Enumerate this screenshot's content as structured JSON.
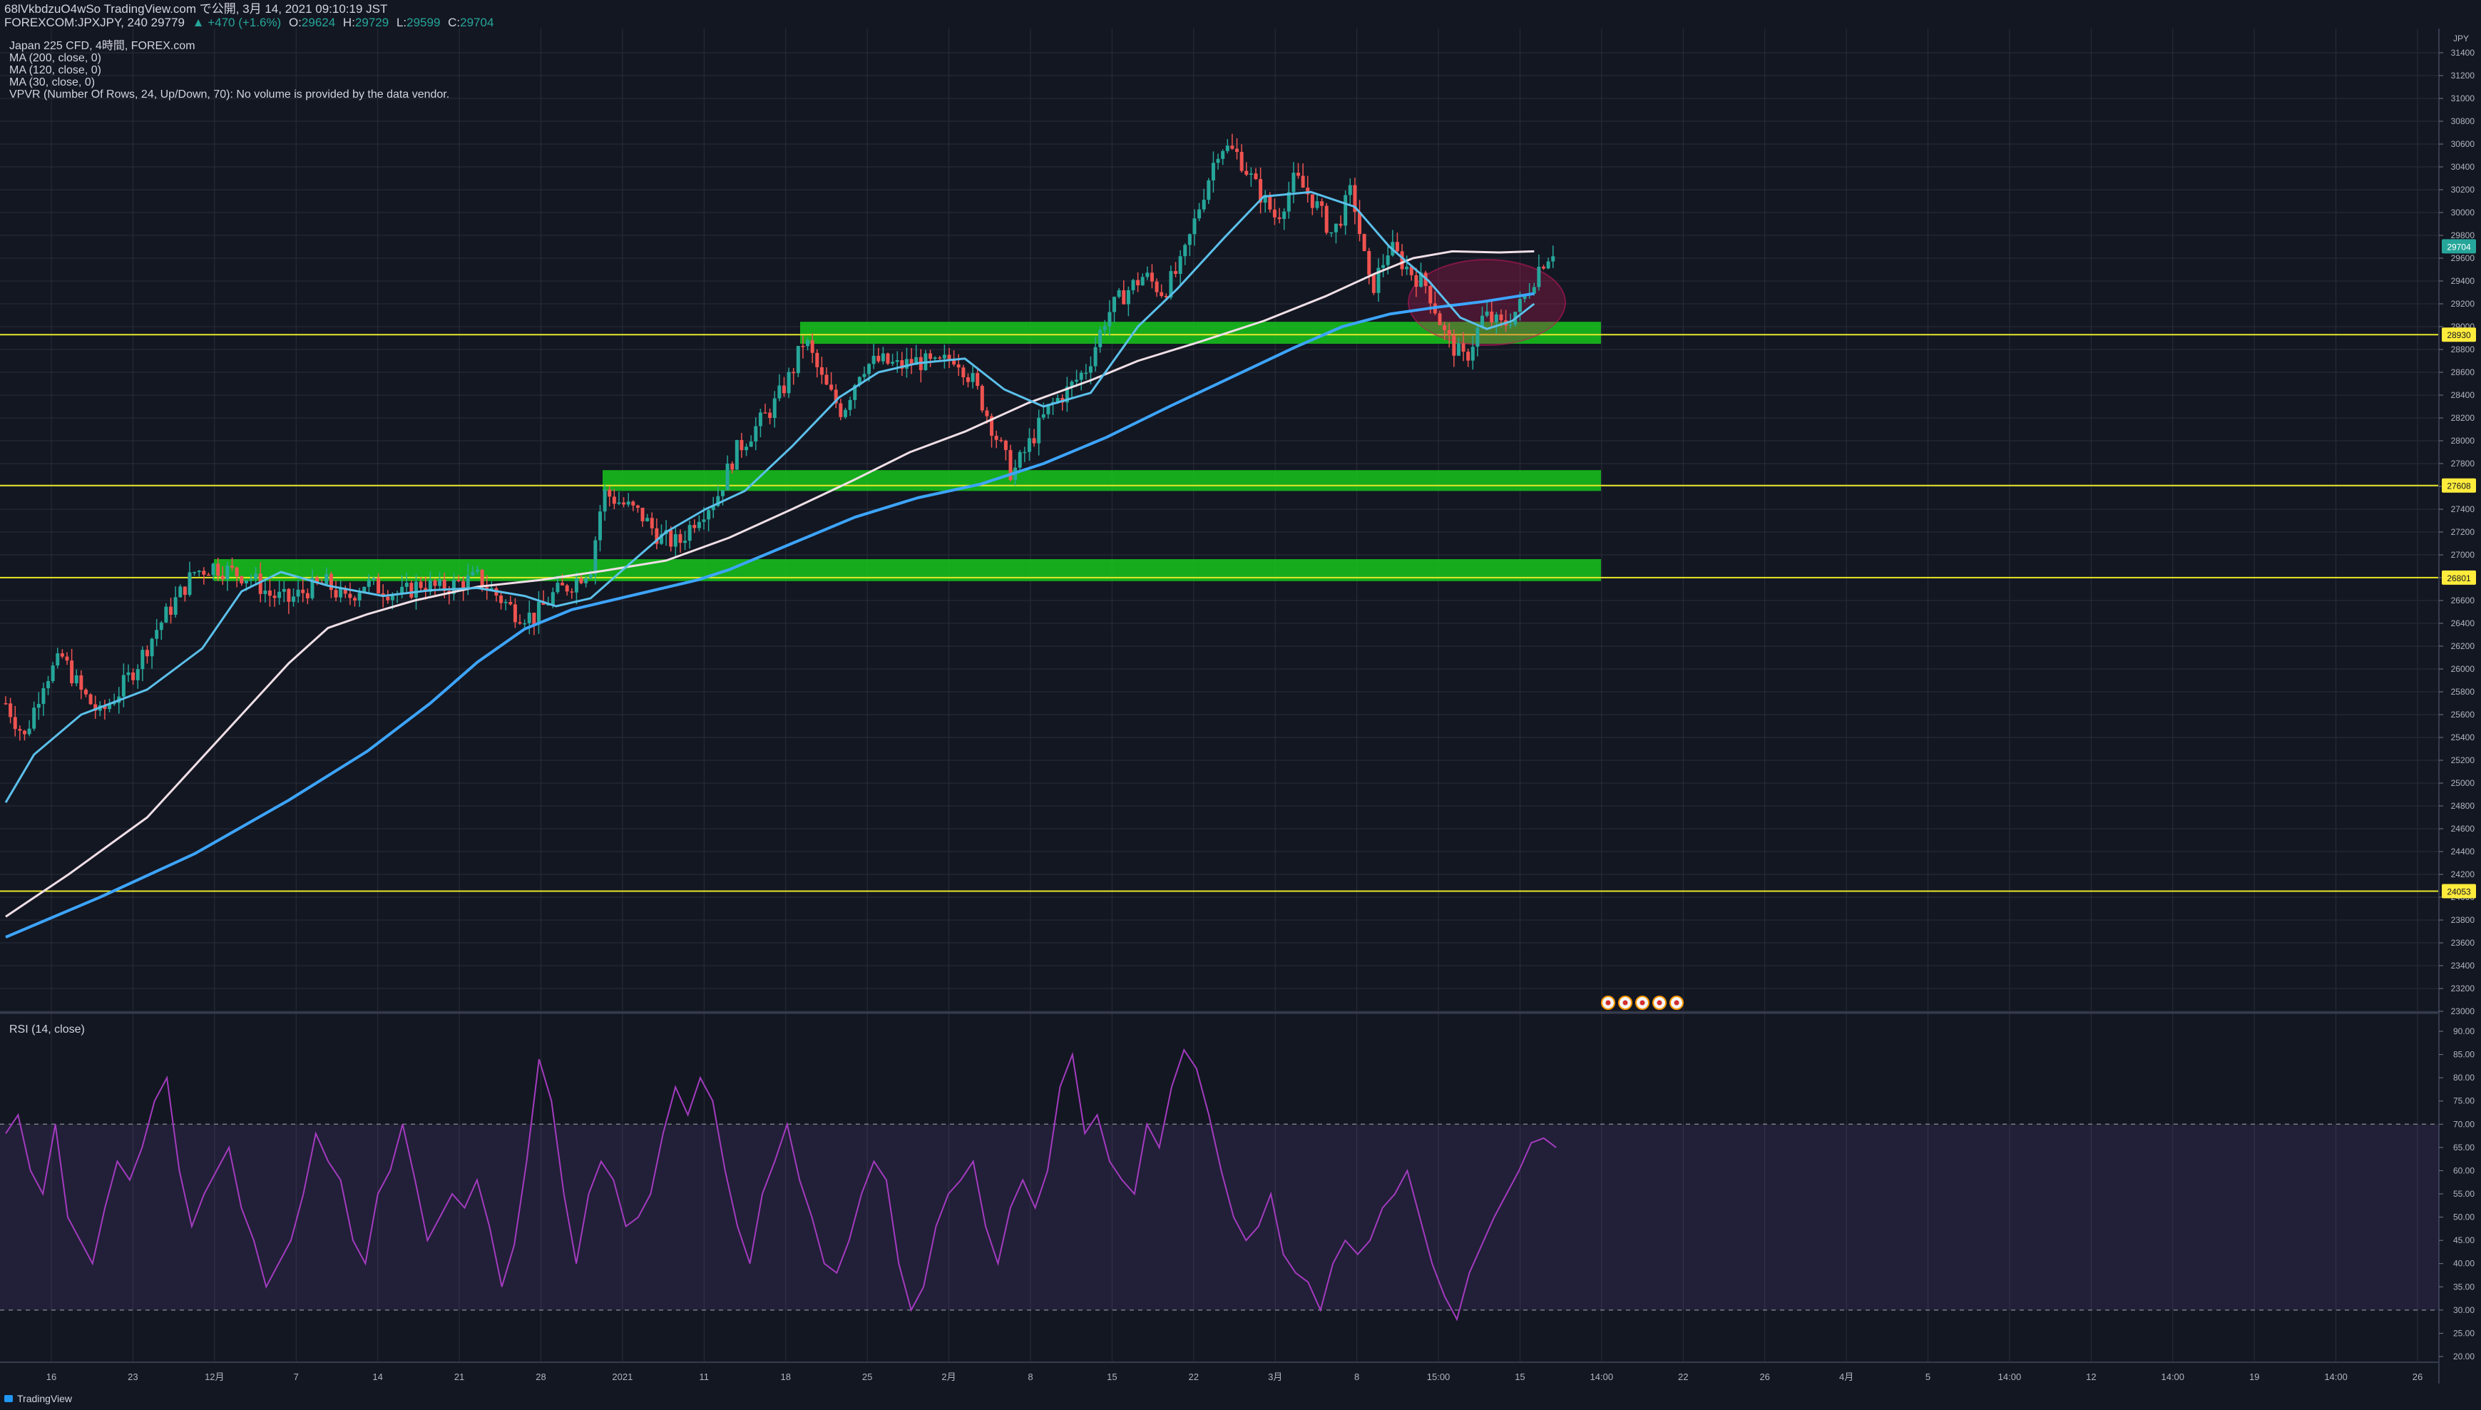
{
  "header": {
    "snapshot_text": "68lVkbdzuO4wSo TradingView.com で公開, 3月 14, 2021 09:10:19 JST",
    "symbol_text": "FOREXCOM:JPXJPY, 240 29779",
    "change_text": "▲ +470 (+1.6%)",
    "o_label": "O:",
    "o_value": "29624",
    "h_label": "H:",
    "h_value": "29729",
    "l_label": "L:",
    "l_value": "29599",
    "c_label": "C:",
    "c_value": "29704"
  },
  "legend": [
    "Japan 225 CFD, 4時間, FOREX.com",
    "MA (200, close, 0)",
    "MA (120, close, 0)",
    "MA (30, close, 0)",
    "VPVR (Number Of Rows, 24, Up/Down, 70): No volume is provided by the data vendor."
  ],
  "rsi_label": "RSI (14, close)",
  "currency_label": "JPY",
  "footer": {
    "brand": "TradingView"
  },
  "colors": {
    "background": "#131722",
    "up": "#26a69a",
    "down": "#ef5350",
    "zone": "#17c51b",
    "hline": "#e8e829",
    "ma30": "#5bc0eb",
    "ma120": "#f0dfe6",
    "ma200": "#3da5ff",
    "rsi": "#a33bbf",
    "rsi_band": "#7e57c2",
    "last_price": "#26a69a"
  },
  "chart_data": {
    "type": "candlestick",
    "symbol": "FOREXCOM:JPXJPY",
    "timeframe": "240",
    "y_axis": {
      "ylim": [
        23000,
        31600
      ],
      "ticks": [
        23000,
        23200,
        23400,
        23600,
        23800,
        24000,
        24200,
        24400,
        24600,
        24800,
        25000,
        25200,
        25400,
        25600,
        25800,
        26000,
        26200,
        26400,
        26600,
        26800,
        27000,
        27200,
        27400,
        27600,
        27800,
        28000,
        28200,
        28400,
        28600,
        28800,
        29000,
        29200,
        29400,
        29600,
        29800,
        30000,
        30200,
        30400,
        30600,
        30800,
        31000,
        31200,
        31400
      ]
    },
    "x_axis": {
      "ticks": [
        "16",
        "23",
        "12月",
        "7",
        "14",
        "21",
        "28",
        "2021",
        "11",
        "18",
        "25",
        "2月",
        "8",
        "15",
        "22",
        "3月",
        "8",
        "15:00",
        "15",
        "14:00",
        "22",
        "26",
        "4月",
        "5",
        "14:00",
        "12",
        "14:00",
        "19",
        "14:00",
        "26"
      ]
    },
    "price_labels": [
      "29704",
      "28930",
      "27608",
      "26801",
      "24053"
    ],
    "horizontal_lines": [
      28930,
      27608,
      26801,
      24053
    ],
    "support_zones": [
      {
        "low": 28850,
        "high": 28980,
        "start": "2021-01-14",
        "end": "2021-03-15"
      },
      {
        "low": 27560,
        "high": 27680,
        "start": "2020-12-28",
        "end": "2021-03-15"
      },
      {
        "low": 26770,
        "high": 26900,
        "start": "2020-11-27",
        "end": "2021-03-15"
      }
    ],
    "ma30_path": [
      [
        0,
        24830
      ],
      [
        18,
        25250
      ],
      [
        48,
        25600
      ],
      [
        90,
        25820
      ],
      [
        125,
        26180
      ],
      [
        150,
        26680
      ],
      [
        175,
        26850
      ],
      [
        205,
        26730
      ],
      [
        240,
        26640
      ],
      [
        270,
        26690
      ],
      [
        300,
        26710
      ],
      [
        330,
        26640
      ],
      [
        350,
        26550
      ],
      [
        372,
        26620
      ],
      [
        395,
        26900
      ],
      [
        420,
        27200
      ],
      [
        445,
        27400
      ],
      [
        470,
        27560
      ],
      [
        500,
        27950
      ],
      [
        530,
        28380
      ],
      [
        555,
        28600
      ],
      [
        580,
        28680
      ],
      [
        610,
        28720
      ],
      [
        635,
        28450
      ],
      [
        660,
        28300
      ],
      [
        690,
        28420
      ],
      [
        720,
        29000
      ],
      [
        745,
        29330
      ],
      [
        775,
        29780
      ],
      [
        800,
        30140
      ],
      [
        830,
        30180
      ],
      [
        858,
        30050
      ],
      [
        880,
        29700
      ],
      [
        905,
        29400
      ],
      [
        925,
        29080
      ],
      [
        942,
        28980
      ],
      [
        958,
        29050
      ],
      [
        972,
        29200
      ]
    ],
    "ma120_path": [
      [
        0,
        23830
      ],
      [
        40,
        24200
      ],
      [
        90,
        24700
      ],
      [
        140,
        25450
      ],
      [
        180,
        26050
      ],
      [
        205,
        26360
      ],
      [
        230,
        26480
      ],
      [
        260,
        26600
      ],
      [
        300,
        26720
      ],
      [
        340,
        26780
      ],
      [
        380,
        26860
      ],
      [
        420,
        26950
      ],
      [
        460,
        27150
      ],
      [
        500,
        27400
      ],
      [
        540,
        27660
      ],
      [
        575,
        27900
      ],
      [
        610,
        28080
      ],
      [
        650,
        28330
      ],
      [
        690,
        28530
      ],
      [
        720,
        28700
      ],
      [
        760,
        28870
      ],
      [
        800,
        29050
      ],
      [
        840,
        29270
      ],
      [
        870,
        29460
      ],
      [
        895,
        29600
      ],
      [
        920,
        29660
      ],
      [
        950,
        29650
      ],
      [
        972,
        29660
      ]
    ],
    "ma200_path": [
      [
        0,
        23650
      ],
      [
        60,
        24000
      ],
      [
        120,
        24380
      ],
      [
        180,
        24850
      ],
      [
        230,
        25280
      ],
      [
        270,
        25700
      ],
      [
        300,
        26060
      ],
      [
        330,
        26350
      ],
      [
        360,
        26520
      ],
      [
        400,
        26650
      ],
      [
        440,
        26780
      ],
      [
        460,
        26870
      ],
      [
        500,
        27100
      ],
      [
        540,
        27330
      ],
      [
        580,
        27500
      ],
      [
        620,
        27620
      ],
      [
        660,
        27800
      ],
      [
        700,
        28030
      ],
      [
        740,
        28300
      ],
      [
        780,
        28560
      ],
      [
        820,
        28820
      ],
      [
        850,
        29000
      ],
      [
        880,
        29110
      ],
      [
        910,
        29170
      ],
      [
        940,
        29220
      ],
      [
        972,
        29290
      ]
    ],
    "candle_anchors": [
      [
        0,
        25700
      ],
      [
        12,
        25400
      ],
      [
        24,
        25900
      ],
      [
        36,
        26100
      ],
      [
        48,
        25800
      ],
      [
        60,
        25600
      ],
      [
        72,
        25800
      ],
      [
        84,
        26050
      ],
      [
        96,
        26350
      ],
      [
        108,
        26600
      ],
      [
        120,
        26850
      ],
      [
        132,
        26900
      ],
      [
        144,
        26850
      ],
      [
        156,
        26800
      ],
      [
        168,
        26650
      ],
      [
        180,
        26600
      ],
      [
        192,
        26700
      ],
      [
        204,
        26750
      ],
      [
        216,
        26600
      ],
      [
        228,
        26750
      ],
      [
        240,
        26700
      ],
      [
        252,
        26650
      ],
      [
        264,
        26750
      ],
      [
        276,
        26700
      ],
      [
        288,
        26750
      ],
      [
        300,
        26800
      ],
      [
        312,
        26650
      ],
      [
        324,
        26500
      ],
      [
        336,
        26450
      ],
      [
        348,
        26650
      ],
      [
        360,
        26750
      ],
      [
        372,
        26900
      ],
      [
        380,
        27550
      ],
      [
        392,
        27450
      ],
      [
        404,
        27350
      ],
      [
        416,
        27150
      ],
      [
        428,
        27100
      ],
      [
        440,
        27350
      ],
      [
        452,
        27500
      ],
      [
        464,
        27900
      ],
      [
        476,
        28100
      ],
      [
        488,
        28300
      ],
      [
        500,
        28600
      ],
      [
        508,
        28900
      ],
      [
        520,
        28500
      ],
      [
        532,
        28250
      ],
      [
        544,
        28650
      ],
      [
        556,
        28700
      ],
      [
        568,
        28650
      ],
      [
        580,
        28700
      ],
      [
        592,
        28650
      ],
      [
        604,
        28750
      ],
      [
        616,
        28500
      ],
      [
        628,
        28100
      ],
      [
        640,
        27700
      ],
      [
        652,
        28000
      ],
      [
        664,
        28300
      ],
      [
        676,
        28450
      ],
      [
        688,
        28650
      ],
      [
        700,
        29100
      ],
      [
        712,
        29300
      ],
      [
        724,
        29450
      ],
      [
        736,
        29300
      ],
      [
        748,
        29550
      ],
      [
        760,
        30100
      ],
      [
        772,
        30600
      ],
      [
        784,
        30500
      ],
      [
        796,
        30200
      ],
      [
        808,
        29950
      ],
      [
        820,
        30300
      ],
      [
        832,
        30100
      ],
      [
        844,
        29800
      ],
      [
        856,
        30200
      ],
      [
        868,
        29300
      ],
      [
        880,
        29700
      ],
      [
        892,
        29500
      ],
      [
        904,
        29350
      ],
      [
        916,
        28900
      ],
      [
        928,
        28700
      ],
      [
        940,
        29100
      ],
      [
        952,
        29000
      ],
      [
        964,
        29200
      ],
      [
        976,
        29550
      ],
      [
        986,
        29704
      ]
    ],
    "rsi": {
      "ylim": [
        20,
        92
      ],
      "ticks": [
        20,
        25,
        30,
        35,
        40,
        45,
        50,
        55,
        60,
        65,
        70,
        75,
        80,
        85,
        90
      ],
      "overbought": 70,
      "oversold": 30,
      "values": [
        68,
        72,
        60,
        55,
        70,
        50,
        45,
        40,
        52,
        62,
        58,
        65,
        75,
        80,
        60,
        48,
        55,
        60,
        65,
        52,
        45,
        35,
        40,
        45,
        55,
        68,
        62,
        58,
        45,
        40,
        55,
        60,
        70,
        58,
        45,
        50,
        55,
        52,
        58,
        48,
        35,
        44,
        62,
        84,
        75,
        55,
        40,
        55,
        62,
        58,
        48,
        50,
        55,
        68,
        78,
        72,
        80,
        75,
        60,
        48,
        40,
        55,
        62,
        70,
        58,
        50,
        40,
        38,
        45,
        55,
        62,
        58,
        40,
        30,
        35,
        48,
        55,
        58,
        62,
        48,
        40,
        52,
        58,
        52,
        60,
        78,
        85,
        68,
        72,
        62,
        58,
        55,
        70,
        65,
        78,
        86,
        82,
        72,
        60,
        50,
        45,
        48,
        55,
        42,
        38,
        36,
        30,
        40,
        45,
        42,
        45,
        52,
        55,
        60,
        50,
        40,
        33,
        28,
        38,
        44,
        50,
        55,
        60,
        66,
        67,
        65
      ]
    }
  }
}
